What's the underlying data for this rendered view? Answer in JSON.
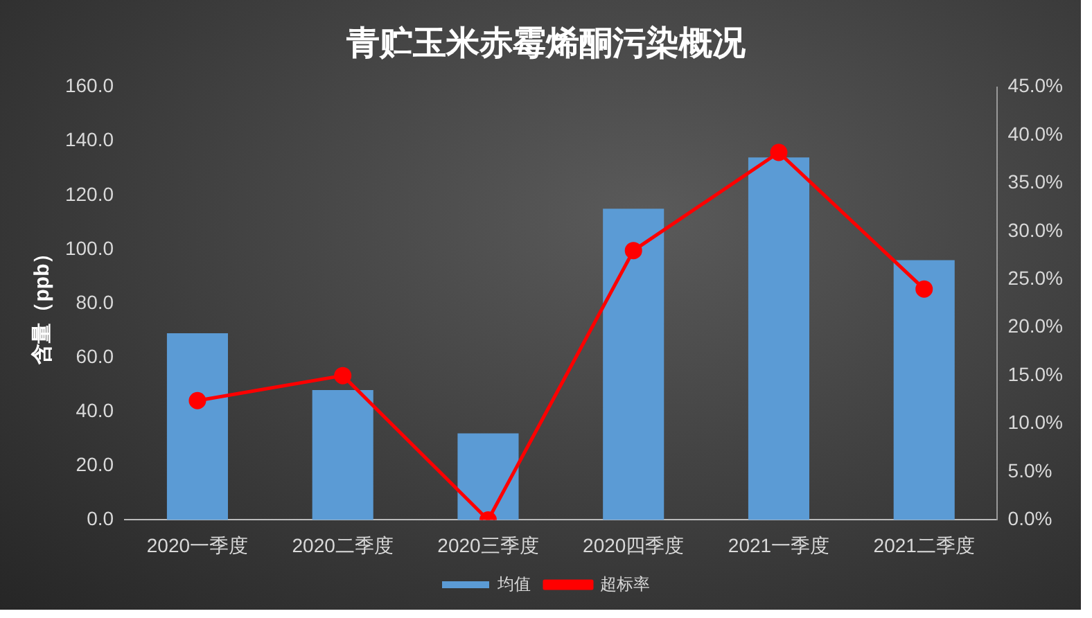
{
  "chart_data": {
    "type": "bar",
    "title": "青贮玉米赤霉烯酮污染概况",
    "ylabel": "含量（ppb）",
    "categories": [
      "2020一季度",
      "2020二季度",
      "2020三季度",
      "2020四季度",
      "2021一季度",
      "2021二季度"
    ],
    "series": [
      {
        "name": "均值",
        "color": "#5b9bd5",
        "values": [
          69,
          48,
          32,
          115,
          134,
          96
        ]
      },
      {
        "name": "超标率",
        "type": "line",
        "axis": "y2",
        "color": "#ff0000",
        "marker": "circle",
        "values": [
          12.4,
          15.0,
          0,
          28.0,
          38.2,
          24.0
        ]
      }
    ],
    "ylim": [
      0,
      160
    ],
    "yticks": [
      {
        "value": 0,
        "label": "0.0"
      },
      {
        "value": 20,
        "label": "20.0"
      },
      {
        "value": 40,
        "label": "40.0"
      },
      {
        "value": 60,
        "label": "60.0"
      },
      {
        "value": 80,
        "label": "80.0"
      },
      {
        "value": 100,
        "label": "100.0"
      },
      {
        "value": 120,
        "label": "120.0"
      },
      {
        "value": 140,
        "label": "140.0"
      },
      {
        "value": 160,
        "label": "160.0"
      }
    ],
    "y2lim": [
      0,
      45
    ],
    "y2ticks": [
      {
        "value": 0,
        "label": "0.0%"
      },
      {
        "value": 5,
        "label": "5.0%"
      },
      {
        "value": 10,
        "label": "10.0%"
      },
      {
        "value": 15,
        "label": "15.0%"
      },
      {
        "value": 20,
        "label": "20.0%"
      },
      {
        "value": 25,
        "label": "25.0%"
      },
      {
        "value": 30,
        "label": "30.0%"
      },
      {
        "value": 35,
        "label": "35.0%"
      },
      {
        "value": 40,
        "label": "40.0%"
      },
      {
        "value": 45,
        "label": "45.0%"
      }
    ],
    "grid": false,
    "legend": "bottom"
  }
}
